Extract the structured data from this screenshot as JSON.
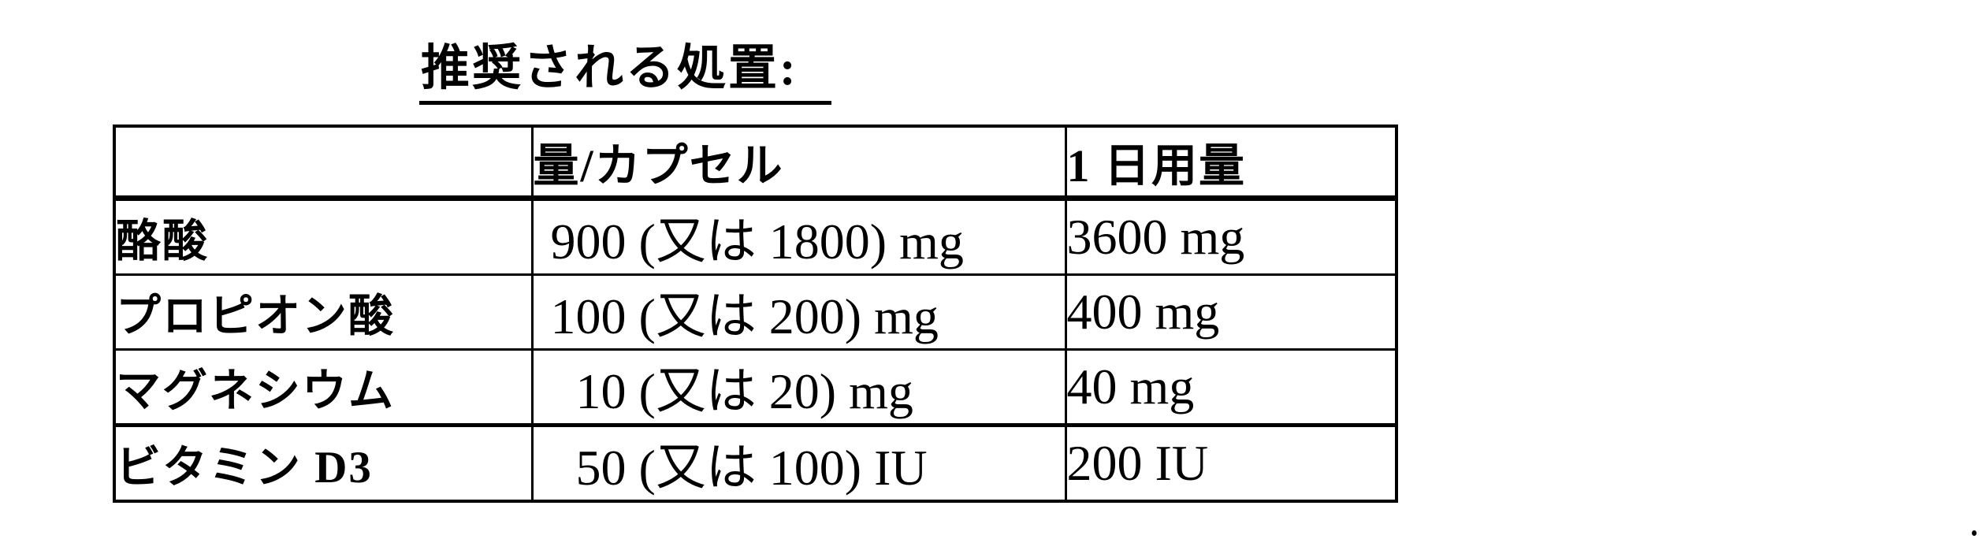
{
  "document": {
    "background_color": "#ffffff",
    "ink_color": "#000000",
    "title": "推奨される処置:"
  },
  "table": {
    "headers": [
      "",
      "量/カプセル",
      "1 日用量"
    ],
    "rows": [
      {
        "name": "酪酸",
        "amount_per_capsule_number": "900",
        "amount_per_capsule_rest": "(又は 1800) mg",
        "daily_dose": "3600 mg"
      },
      {
        "name": "プロピオン酸",
        "amount_per_capsule_number": "100",
        "amount_per_capsule_rest": "(又は 200) mg",
        "daily_dose": "400 mg"
      },
      {
        "name": "マグネシウム",
        "amount_per_capsule_number": "10",
        "amount_per_capsule_rest": "(又は 20) mg",
        "daily_dose": "40 mg"
      },
      {
        "name": "ビタミン D3",
        "amount_per_capsule_number": "50",
        "amount_per_capsule_rest": "(又は 100) IU",
        "daily_dose": "200 IU"
      }
    ]
  }
}
